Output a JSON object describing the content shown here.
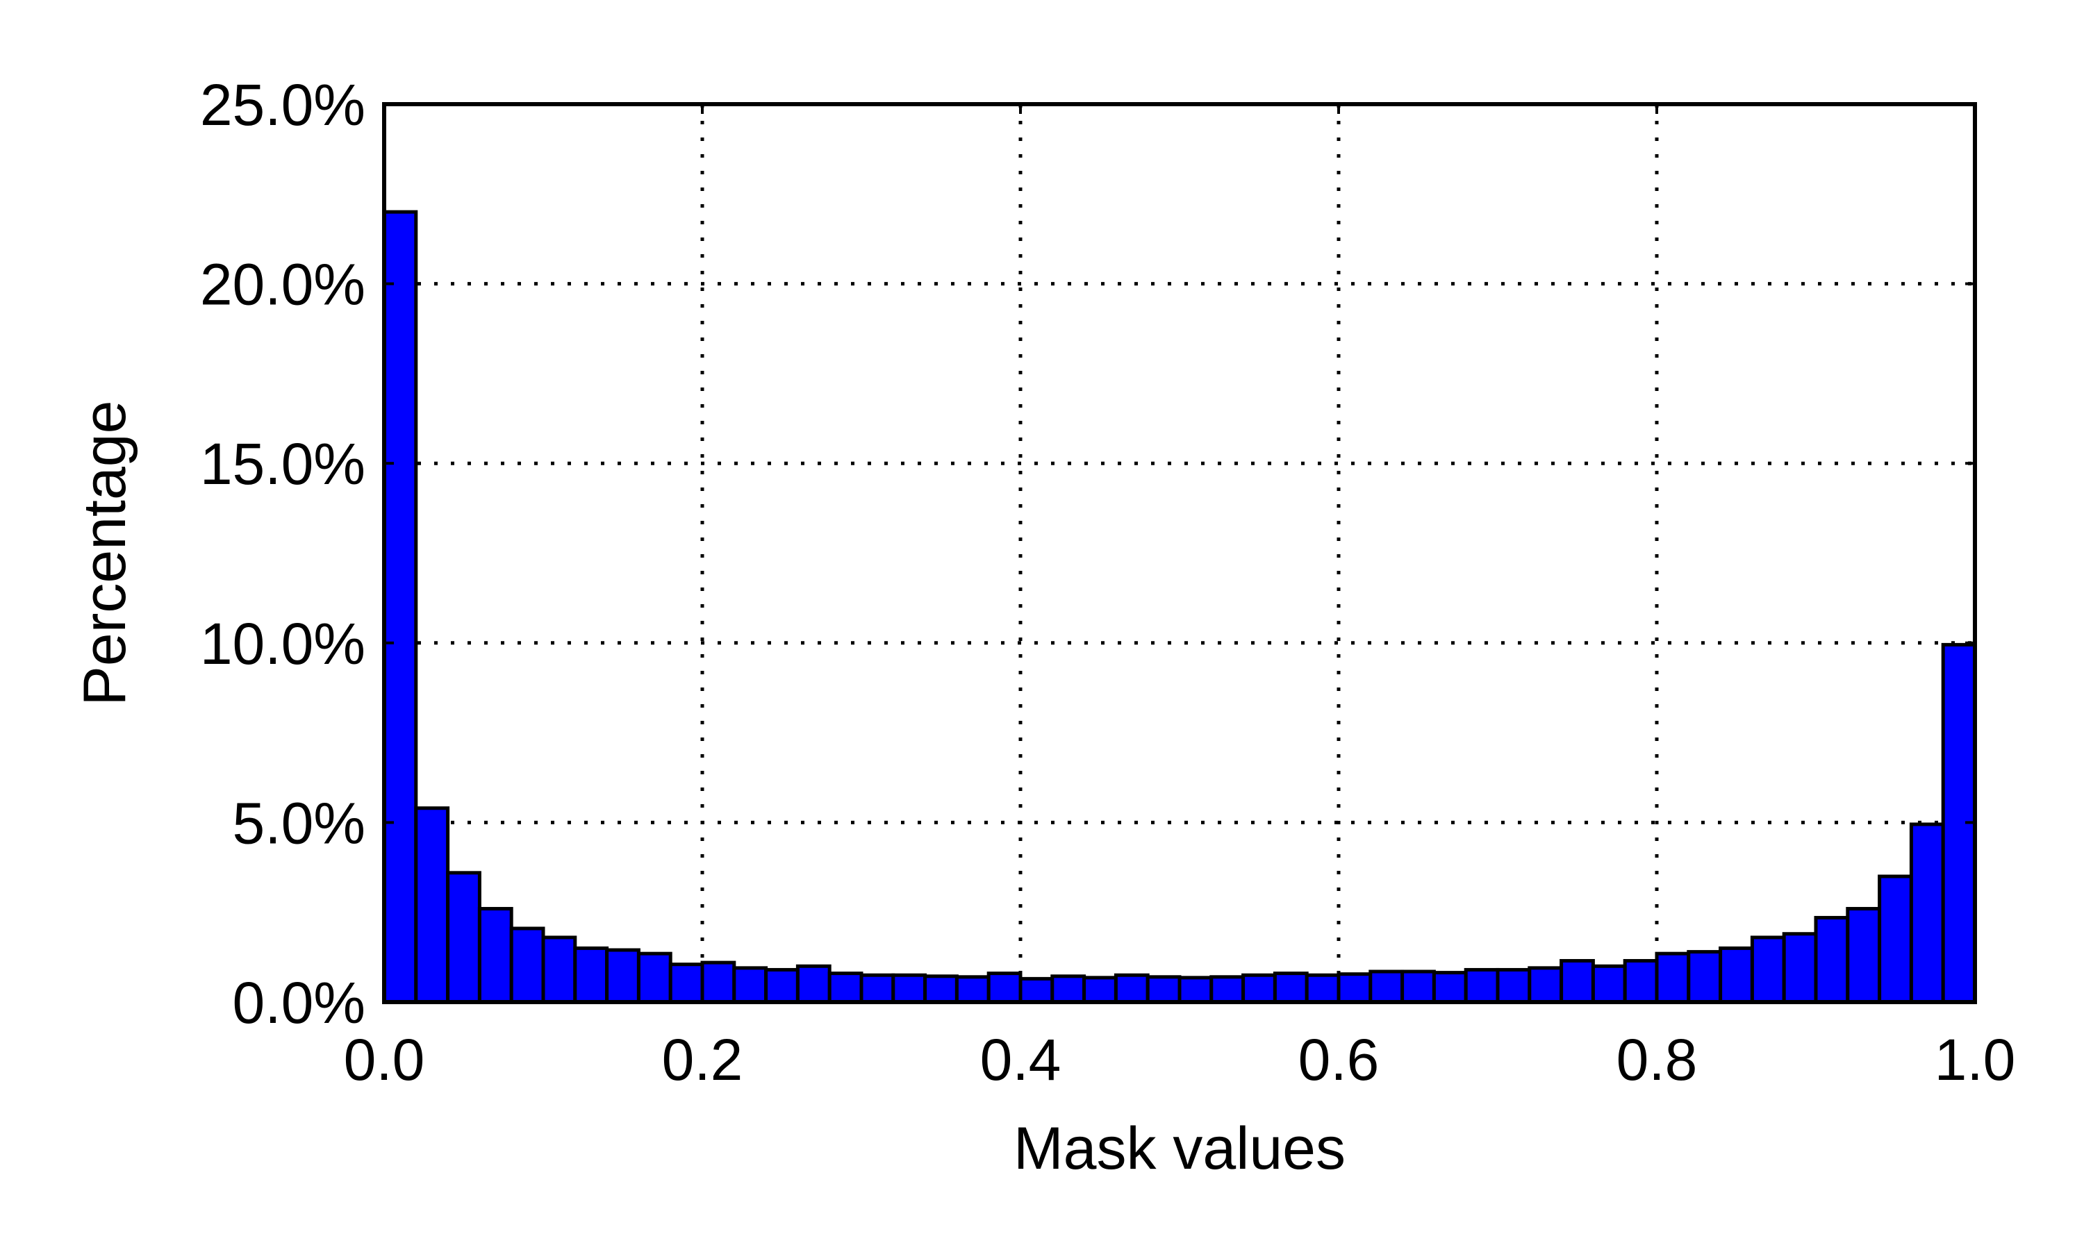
{
  "chart_data": {
    "type": "bar",
    "title": "",
    "xlabel": "Mask values",
    "ylabel": "Percentage",
    "xlim": [
      0.0,
      1.0
    ],
    "ylim": [
      0.0,
      25.0
    ],
    "x_ticks": [
      0.0,
      0.2,
      0.4,
      0.6,
      0.8,
      1.0
    ],
    "x_tick_labels": [
      "0.0",
      "0.2",
      "0.4",
      "0.6",
      "0.8",
      "1.0"
    ],
    "y_ticks": [
      0,
      5,
      10,
      15,
      20,
      25
    ],
    "y_tick_labels": [
      "0.0%",
      "5.0%",
      "10.0%",
      "15.0%",
      "20.0%",
      "25.0%"
    ],
    "grid": true,
    "grid_style": "dotted",
    "bar_color": "#0000ff",
    "edge_color": "#000000",
    "bin_width": 0.02,
    "bin_starts": [
      0.0,
      0.02,
      0.04,
      0.06,
      0.08,
      0.1,
      0.12,
      0.14,
      0.16,
      0.18,
      0.2,
      0.22,
      0.24,
      0.26,
      0.28,
      0.3,
      0.32,
      0.34,
      0.36,
      0.38,
      0.4,
      0.42,
      0.44,
      0.46,
      0.48,
      0.5,
      0.52,
      0.54,
      0.56,
      0.58,
      0.6,
      0.62,
      0.64,
      0.66,
      0.68,
      0.7,
      0.72,
      0.74,
      0.76,
      0.78,
      0.8,
      0.82,
      0.84,
      0.86,
      0.88,
      0.9,
      0.92,
      0.94,
      0.96,
      0.98
    ],
    "values": [
      22.0,
      5.4,
      3.6,
      2.6,
      2.05,
      1.8,
      1.5,
      1.45,
      1.35,
      1.05,
      1.1,
      0.95,
      0.9,
      1.0,
      0.8,
      0.75,
      0.75,
      0.72,
      0.7,
      0.8,
      0.65,
      0.72,
      0.68,
      0.75,
      0.7,
      0.68,
      0.7,
      0.75,
      0.8,
      0.75,
      0.78,
      0.85,
      0.85,
      0.82,
      0.9,
      0.9,
      0.95,
      1.15,
      1.0,
      1.15,
      1.35,
      1.4,
      1.5,
      1.8,
      1.9,
      2.35,
      2.6,
      3.5,
      4.95,
      9.95
    ]
  }
}
